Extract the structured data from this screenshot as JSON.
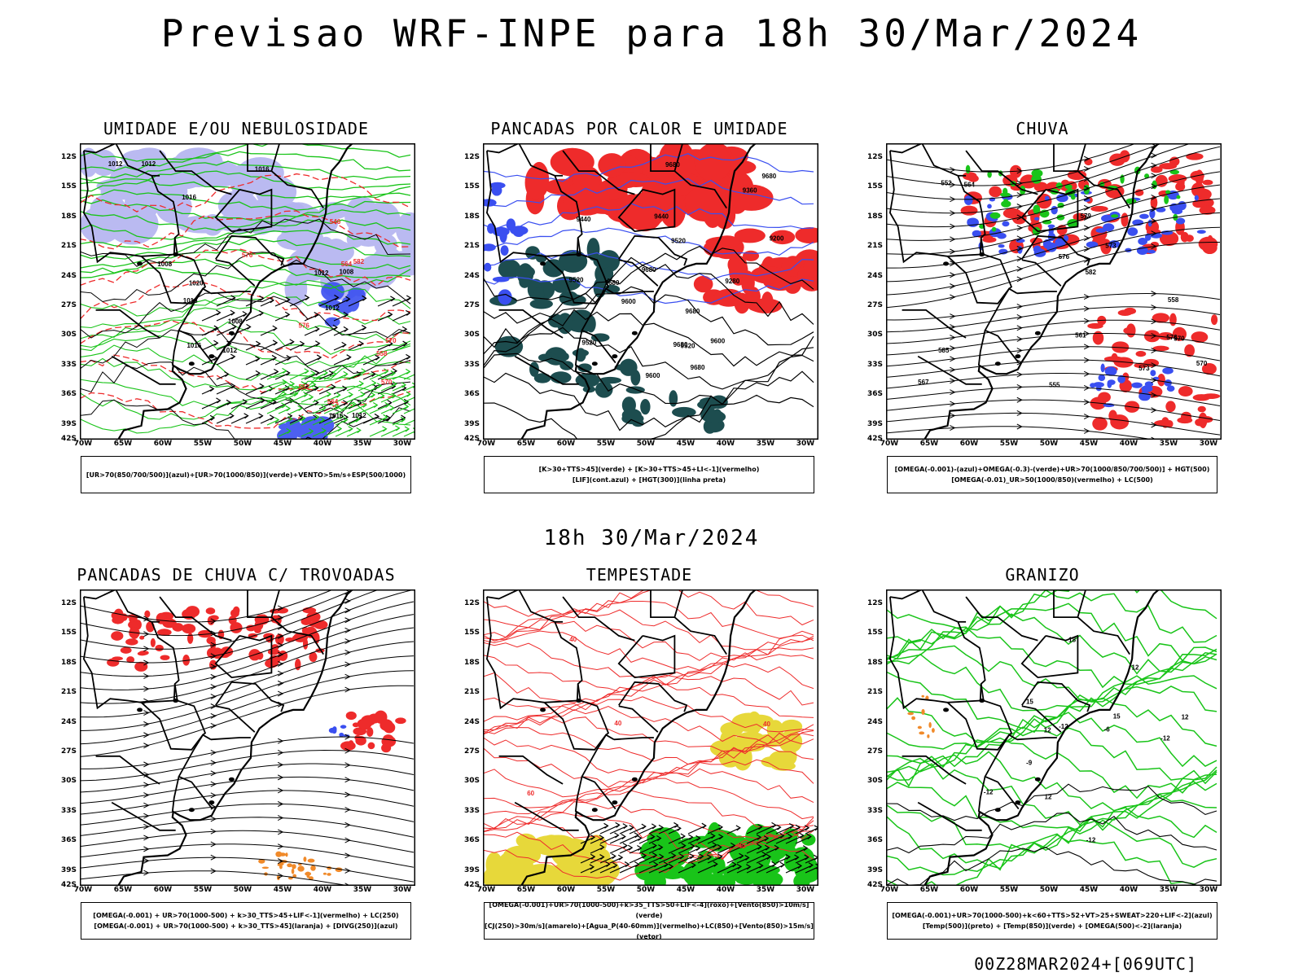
{
  "title": "Previsao WRF-INPE  para 18h 30/Mar/2024",
  "mid_title": "18h 30/Mar/2024",
  "footer": "00Z28MAR2024+[069UTC]",
  "axes": {
    "lat": [
      "12S",
      "15S",
      "18S",
      "21S",
      "24S",
      "27S",
      "30S",
      "33S",
      "36S",
      "39S",
      "42S"
    ],
    "lon": [
      "70W",
      "65W",
      "60W",
      "55W",
      "50W",
      "45W",
      "40W",
      "35W",
      "30W"
    ]
  },
  "panels": [
    {
      "id": "umidade",
      "title": "UMIDADE E/OU NEBULOSIDADE",
      "legend": [
        "[UR>70(850/700/500)](azul)+[UR>70(1000/850)](verde)+VENTO>5m/s+ESP(500/1000)"
      ],
      "labels": [
        "1008",
        "1008",
        "1012",
        "1012",
        "1012",
        "1016",
        "1012",
        "1016",
        "1016",
        "1012",
        "1008",
        "1016",
        "1012",
        "1016",
        "1020",
        "576",
        "570",
        "564",
        "558",
        "552",
        "546",
        "582",
        "576",
        "570",
        "564"
      ]
    },
    {
      "id": "pancadas-calor",
      "title": "PANCADAS POR CALOR E UMIDADE",
      "legend": [
        "[K>30+TTS>45](verde) + [K>30+TTS>45+LI<-1](vermelho)",
        "[LIF](cont.azul) + [HGT(300)](linha preta)"
      ],
      "labels": [
        "9680",
        "9680",
        "9680",
        "9680",
        "9680",
        "9680",
        "9600",
        "9680",
        "9600",
        "9520",
        "9600",
        "9520",
        "9520",
        "9440",
        "9440",
        "9360",
        "9280",
        "9200",
        "9520"
      ]
    },
    {
      "id": "chuva",
      "title": "CHUVA",
      "legend": [
        "[OMEGA(-0.001)-(azul)+OMEGA(-0.3)-(verde)+UR>70(1000/850/700/500)] + HGT(500)",
        "[OMEGA(-0.01)_UR>50(1000/850)(vermelho) + LC(500)"
      ],
      "labels": [
        "585",
        "582",
        "576",
        "570",
        "579",
        "573",
        "576",
        "573",
        "570",
        "567",
        "564",
        "561",
        "558",
        "555",
        "552"
      ]
    },
    {
      "id": "trovoadas",
      "title": "PANCADAS DE CHUVA C/ TROVOADAS",
      "legend": [
        "[OMEGA(-0.001) + UR>70(1000-500) + k>30_TTS>45+LIF<-1](vermelho) + LC(250)",
        "[OMEGA(-0.001) + UR>70(1000-500) + k>30_TTS>45](laranja) + [DIVG(250)](azul)"
      ],
      "labels": []
    },
    {
      "id": "tempestade",
      "title": "TEMPESTADE",
      "legend": [
        "[OMEGA(-0.001)+UR>70(1000-500)+k>35_TTS>50+LIF<-4](roxo)+[Vento(850)>10m/s](verde)",
        "[CJ(250)>30m/s](amarelo)+[Agua_P(40-60mm)](vermelho)+LC(850)+[Vento(850)>15m/s](vetor)"
      ],
      "labels": [
        "40",
        "40",
        "40",
        "40",
        "60"
      ]
    },
    {
      "id": "granizo",
      "title": "GRANIZO",
      "legend": [
        "[OMEGA(-0.001)+UR>70(1000-500)+k<60+TTS>52+VT>25+SWEAT>220+LIF<-2](azul)",
        "[Temp(500)](preto) + [Temp(850)](verde) + [OMEGA(500)<-2](laranja)"
      ],
      "labels": [
        "-12",
        "-12",
        "-12",
        "-12",
        "12",
        "12",
        "12",
        "12",
        "15",
        "15",
        "18",
        "-6",
        "-9"
      ]
    }
  ],
  "colors": {
    "green": "#19c419",
    "red": "#ee2b2b",
    "blue": "#3a4ff0",
    "lightblue": "#b3b3f0",
    "darkteal": "#1d4d4f",
    "yellow": "#e7d83a",
    "orange": "#f08a2a"
  }
}
